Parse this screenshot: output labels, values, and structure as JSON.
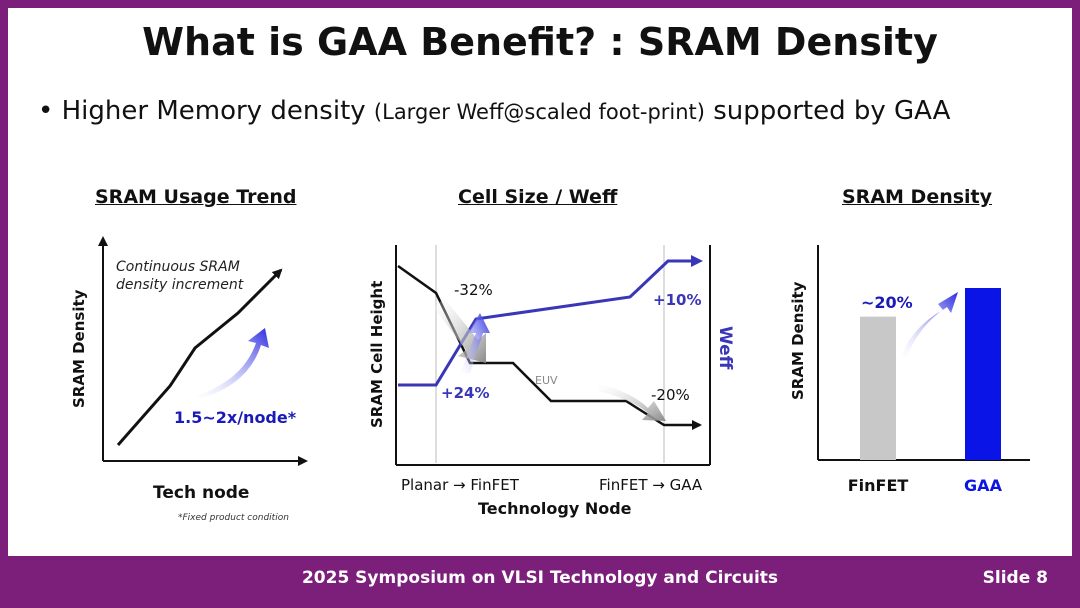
{
  "slide": {
    "title": "What is GAA Benefit? : SRAM Density",
    "bullet_main": "Higher Memory density",
    "bullet_paren": "(Larger Weff@scaled foot-print)",
    "bullet_tail": "supported by GAA",
    "bullet_glyph": "•"
  },
  "panel1": {
    "heading": "SRAM Usage Trend",
    "ylabel": "SRAM Density",
    "xlabel": "Tech node",
    "annotation_line1": "Continuous SRAM",
    "annotation_line2": "density increment",
    "rate_label": "1.5~2x/node*",
    "footnote": "*Fixed product condition"
  },
  "panel2": {
    "heading": "Cell Size / Weff",
    "ylabel_left": "SRAM Cell Height",
    "ylabel_right": "Weff",
    "xlabel": "Technology Node",
    "xtick_left": "Planar → FinFET",
    "xtick_right": "FinFET → GAA",
    "label_minus32": "-32%",
    "label_plus24": "+24%",
    "label_plus10": "+10%",
    "label_minus20": "-20%",
    "label_euv": "EUV"
  },
  "panel3": {
    "heading": "SRAM Density",
    "ylabel": "SRAM Density",
    "gain_label": "~20%",
    "bars": [
      {
        "name": "FinFET",
        "value": 1.0,
        "color": "#c8c8c8"
      },
      {
        "name": "GAA",
        "value": 1.2,
        "color": "#0a14e6"
      }
    ]
  },
  "colors": {
    "accent_purple": "#7b1f7b",
    "weff_blue": "#3a36b8",
    "gaa_blue": "#0a14e6"
  },
  "footer": {
    "venue": "2025 Symposium on VLSI Technology and Circuits",
    "slide_number": "Slide 8"
  }
}
